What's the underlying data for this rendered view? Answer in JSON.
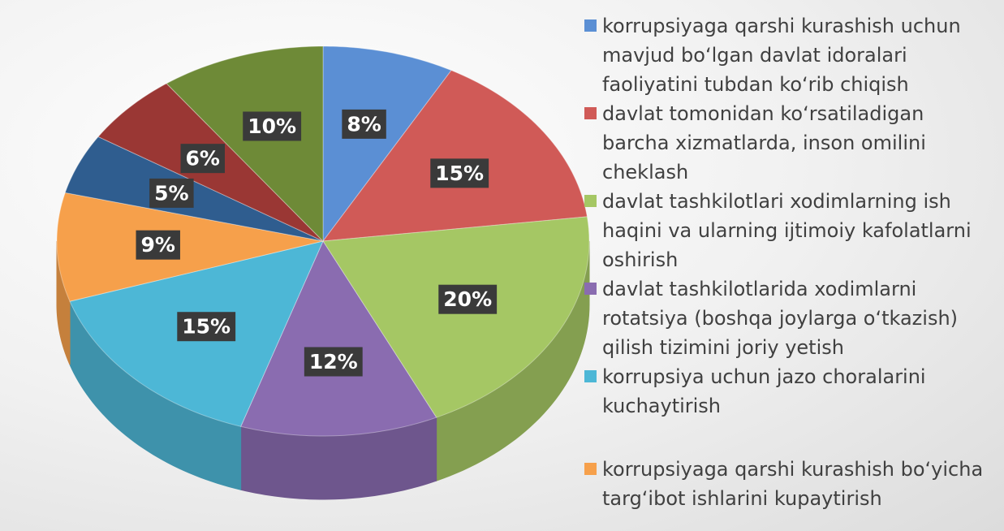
{
  "chart_data": {
    "type": "pie",
    "categories": [
      "korrupsiyaga qarshi kurashish uchun mavjud bo‘lgan davlat idoralari faoliyatini tubdan ko‘rib chiqish",
      "davlat tomonidan ko‘rsatiladigan barcha xizmatlarda, inson omilini cheklash",
      "davlat tashkilotlari xodimlarning ish haqini va ularning ijtimoiy kafolatlarni oshirish",
      "davlat tashkilotlarida xodimlarni rotatsiya (boshqa joylarga o‘tkazish) qilish tizimini joriy yetish",
      "korrupsiya uchun jazo  choralarini kuchaytirish",
      "korrupsiyaga qarshi kurashish bo‘yicha targ‘ibot ishlarini kupaytirish",
      null,
      null,
      null
    ],
    "values": [
      8,
      15,
      20,
      12,
      15,
      9,
      5,
      6,
      10
    ],
    "value_labels": [
      "8%",
      "15%",
      "20%",
      "12%",
      "15%",
      "9%",
      "5%",
      "6%",
      "10%"
    ],
    "colors": [
      "#5b8fd4",
      "#d05a57",
      "#a5c764",
      "#8a6cb0",
      "#4db7d6",
      "#f6a04b",
      "#2f5d8f",
      "#9a3734",
      "#6e8a37"
    ]
  }
}
